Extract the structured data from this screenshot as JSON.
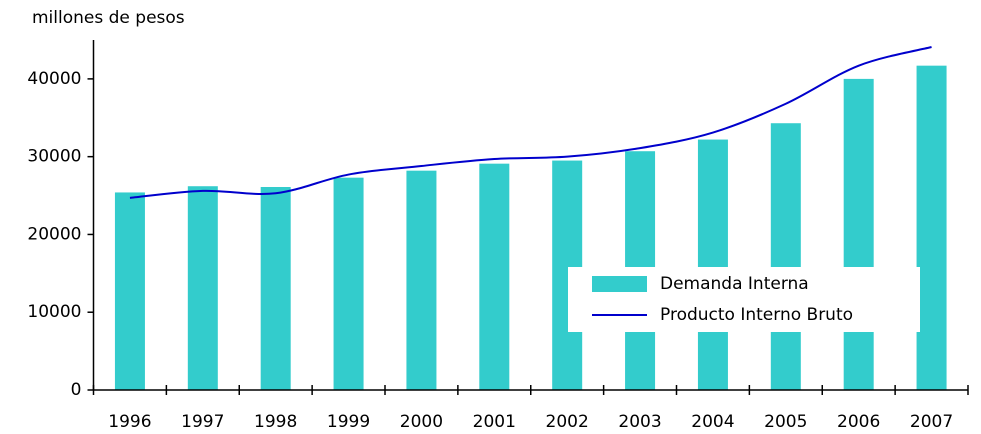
{
  "chart_data": {
    "type": "bar_line",
    "y_label": "millones de pesos",
    "categories": [
      "1996",
      "1997",
      "1998",
      "1999",
      "2000",
      "2001",
      "2002",
      "2003",
      "2004",
      "2005",
      "2006",
      "2007"
    ],
    "series": [
      {
        "name": "Demanda Interna",
        "type": "bar",
        "color": "#33cccc",
        "values": [
          25400,
          26200,
          26100,
          27300,
          28200,
          29100,
          29500,
          30700,
          32200,
          34300,
          40000,
          41700
        ]
      },
      {
        "name": "Producto Interno Bruto",
        "type": "line",
        "color": "#0000cc",
        "values": [
          24700,
          25600,
          25300,
          27700,
          28800,
          29700,
          30000,
          31100,
          33100,
          36800,
          41700,
          44100
        ]
      }
    ],
    "ylim": [
      0,
      45000
    ],
    "yticks": [
      0,
      10000,
      20000,
      30000,
      40000
    ],
    "grid": false
  }
}
